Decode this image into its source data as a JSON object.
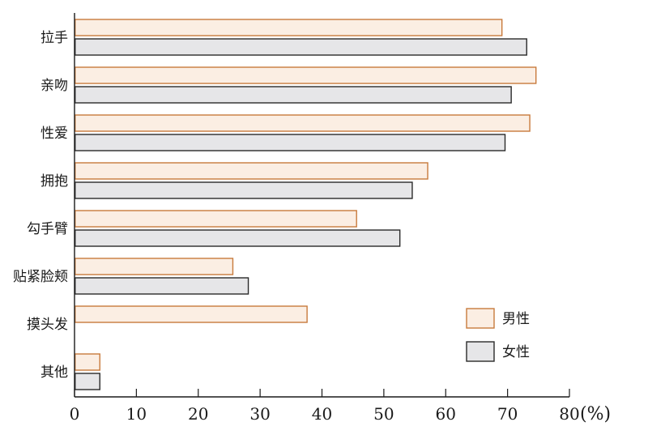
{
  "chart_data": {
    "type": "bar",
    "orientation": "horizontal",
    "categories": [
      "拉手",
      "亲吻",
      "性爱",
      "拥抱",
      "勾手臂",
      "贴紧脸颊",
      "摸头发",
      "其他"
    ],
    "series": [
      {
        "name": "男性",
        "values": [
          69,
          74.5,
          73.5,
          57,
          45.5,
          25.5,
          37.5,
          4
        ],
        "color": "#fbeee3",
        "stroke": "#c87a3c"
      },
      {
        "name": "女性",
        "values": [
          73,
          70.5,
          69.5,
          54.5,
          52.5,
          28,
          null,
          4
        ],
        "color": "#e6e6e8",
        "stroke": "#2a2a2a"
      }
    ],
    "xlim": [
      0,
      80
    ],
    "xticks": [
      "0",
      "10",
      "20",
      "30",
      "40",
      "50",
      "60",
      "70",
      "80"
    ],
    "unit_label": "(%)",
    "legend_position": "bottom-right",
    "grid": false
  }
}
